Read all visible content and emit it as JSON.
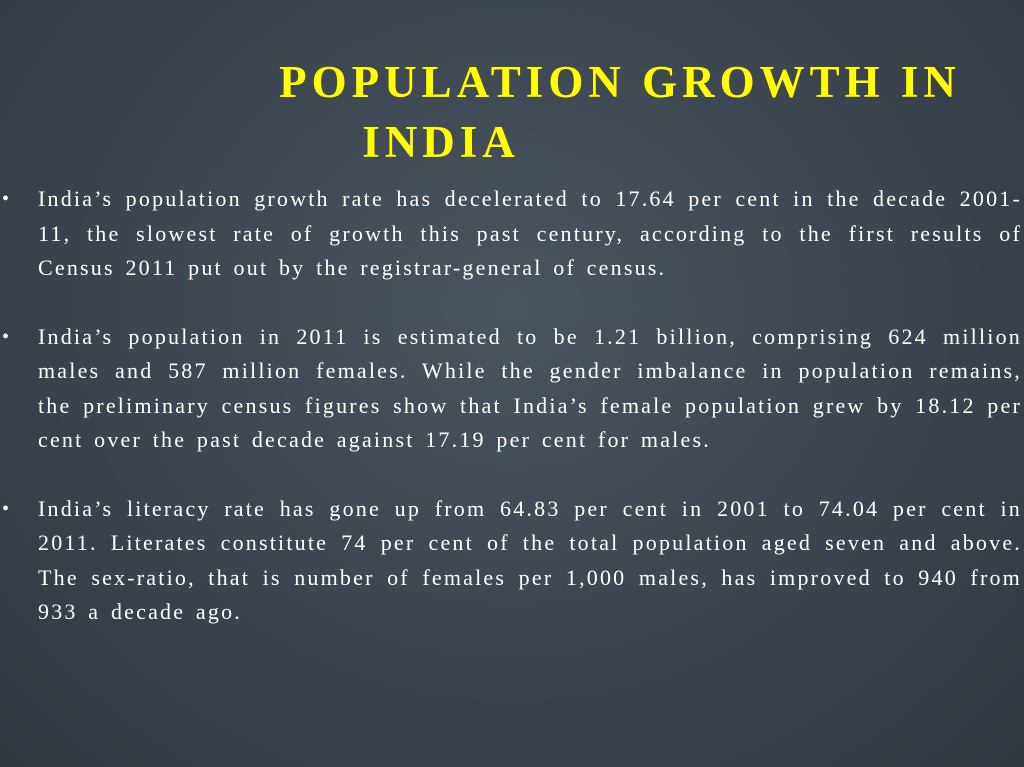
{
  "slide": {
    "title_line1": "POPULATION GROWTH IN",
    "title_line2": "INDIA",
    "bullets": [
      "India’s population growth rate has decelerated to 17.64 per cent in the decade 2001-11, the slowest rate of growth this past century, according to the first results of Census 2011 put out by the registrar-general of census.",
      "India’s population in 2011 is estimated to be 1.21 billion, comprising 624 million males and 587 million females. While the gender imbalance in population remains, the preliminary census figures show that India’s female population grew by 18.12 per cent over the past decade against 17.19 per cent for males.",
      "India’s literacy rate has gone up from 64.83 per cent in 2001 to 74.04 per cent in 2011. Literates constitute 74 per cent of the total population aged seven and above. The sex-ratio, that is number of females per 1,000 males, has improved to 940 from 933 a decade ago."
    ],
    "bullet_symbol": "•",
    "colors": {
      "title": "#ffff00",
      "body_text": "#ffffff",
      "background": "#3c454f"
    }
  }
}
